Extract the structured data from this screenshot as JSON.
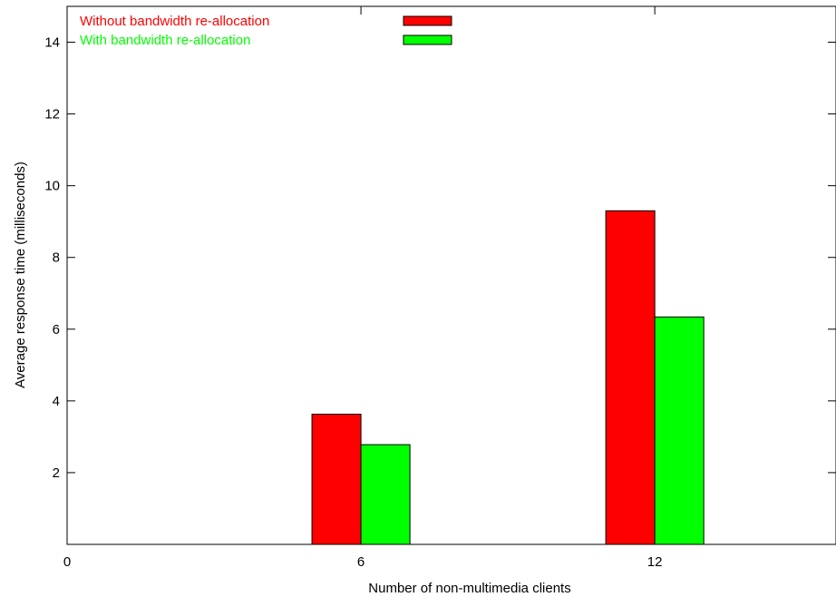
{
  "chart_data": {
    "type": "bar",
    "title": "",
    "xlabel": "Number of non-multimedia clients",
    "ylabel": "Average response time (milliseconds)",
    "x_ticks": [
      0,
      6,
      12
    ],
    "y_ticks": [
      2,
      4,
      6,
      8,
      10,
      12,
      14
    ],
    "xlim": [
      0,
      15.7
    ],
    "ylim": [
      0,
      15
    ],
    "grid": false,
    "legend_position": "top-left",
    "categories": [
      "6",
      "12"
    ],
    "category_x": [
      6,
      12
    ],
    "series": [
      {
        "name": "Without bandwidth re-allocation",
        "color": "#ff0000",
        "values": [
          3.63,
          9.3
        ]
      },
      {
        "name": "With bandwidth re-allocation",
        "color": "#00ff00",
        "values": [
          2.78,
          6.34
        ]
      }
    ]
  }
}
